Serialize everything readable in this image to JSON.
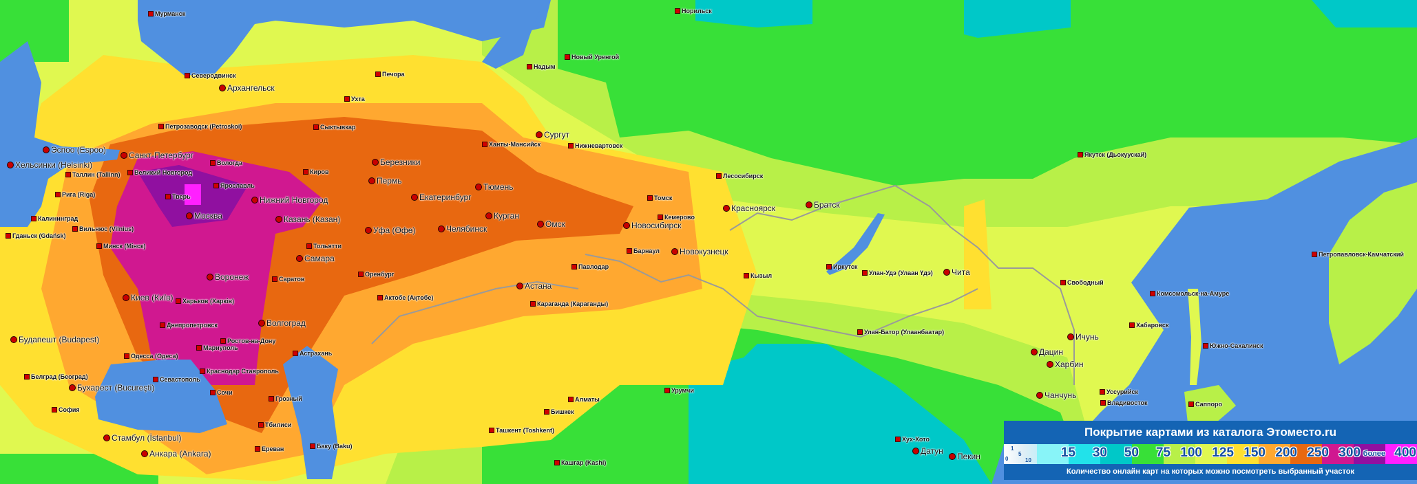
{
  "colors": {
    "sea": "#5090e0",
    "base": "#e0f850",
    "legend_bg": "#1464b4",
    "scale": [
      "#88f4f8",
      "#22e2ea",
      "#00c8c8",
      "#38e038",
      "#b8f048",
      "#e0f850",
      "#ffe030",
      "#ffa830",
      "#e86810",
      "#d01890",
      "#9010a0",
      "#ff20ff"
    ]
  },
  "legend": {
    "title": "Покрытие картами из каталога Этоместо.ru",
    "start_values": [
      "0",
      "1",
      "5",
      "10"
    ],
    "values": [
      "15",
      "30",
      "50",
      "75",
      "100",
      "125",
      "150",
      "200",
      "250",
      "300",
      "400"
    ],
    "more_label": "более",
    "subtitle": "Количество онлайн карт на которых можно посмотреть выбранный участок"
  },
  "cities": [
    {
      "name": "Мурманск",
      "type": "town"
    },
    {
      "name": "Северодвинск",
      "type": "town"
    },
    {
      "name": "Архангельск",
      "type": "city"
    },
    {
      "name": "Печора",
      "type": "town"
    },
    {
      "name": "Ухта",
      "type": "town"
    },
    {
      "name": "Сыктывкар",
      "type": "town"
    },
    {
      "name": "Петрозаводск (Petroskoi)",
      "type": "town"
    },
    {
      "name": "Санкт-Петербург",
      "type": "city"
    },
    {
      "name": "Хельсинки (Helsinki)",
      "type": "city"
    },
    {
      "name": "Эспоо (Espoo)",
      "type": "city"
    },
    {
      "name": "Таллин (Tallinn)",
      "type": "town"
    },
    {
      "name": "Великий Новгород",
      "type": "town"
    },
    {
      "name": "Вологда",
      "type": "town"
    },
    {
      "name": "Ярославль",
      "type": "town"
    },
    {
      "name": "Киров",
      "type": "town"
    },
    {
      "name": "Пермь",
      "type": "city"
    },
    {
      "name": "Березники",
      "type": "city"
    },
    {
      "name": "Екатеринбург",
      "type": "city"
    },
    {
      "name": "Тюмень",
      "type": "city"
    },
    {
      "name": "Нижний Новгород",
      "type": "city"
    },
    {
      "name": "Казань (Казан)",
      "type": "city"
    },
    {
      "name": "Москва",
      "type": "city"
    },
    {
      "name": "Тверь",
      "type": "town"
    },
    {
      "name": "Уфа (Өфө)",
      "type": "city"
    },
    {
      "name": "Челябинск",
      "type": "city"
    },
    {
      "name": "Курган",
      "type": "city"
    },
    {
      "name": "Омск",
      "type": "city"
    },
    {
      "name": "Новосибирск",
      "type": "city"
    },
    {
      "name": "Красноярск",
      "type": "city"
    },
    {
      "name": "Братск",
      "type": "city"
    },
    {
      "name": "Иркутск",
      "type": "town"
    },
    {
      "name": "Чита",
      "type": "city"
    },
    {
      "name": "Томск",
      "type": "town"
    },
    {
      "name": "Кемерово",
      "type": "town"
    },
    {
      "name": "Новокузнецк",
      "type": "city"
    },
    {
      "name": "Барнаул",
      "type": "town"
    },
    {
      "name": "Павлодар",
      "type": "town"
    },
    {
      "name": "Астана",
      "type": "city"
    },
    {
      "name": "Караганда (Караганды)",
      "type": "town"
    },
    {
      "name": "Самара",
      "type": "city"
    },
    {
      "name": "Тольятти",
      "type": "town"
    },
    {
      "name": "Саратов",
      "type": "town"
    },
    {
      "name": "Воронеж",
      "type": "city"
    },
    {
      "name": "Киев (Київ)",
      "type": "city"
    },
    {
      "name": "Минск (Мінск)",
      "type": "town"
    },
    {
      "name": "Волгоград",
      "type": "city"
    },
    {
      "name": "Ростов-на-Дону",
      "type": "town"
    },
    {
      "name": "Краснодар Ставрополь",
      "type": "town"
    },
    {
      "name": "Астрахань",
      "type": "town"
    },
    {
      "name": "Сочи",
      "type": "town"
    },
    {
      "name": "Грозный",
      "type": "town"
    },
    {
      "name": "Тбилиси",
      "type": "town"
    },
    {
      "name": "Баку (Baku)",
      "type": "town"
    },
    {
      "name": "Ереван",
      "type": "town"
    },
    {
      "name": "Одесса (Одеса)",
      "type": "town"
    },
    {
      "name": "Севастополь",
      "type": "town"
    },
    {
      "name": "Бухарест (Bucureşti)",
      "type": "city"
    },
    {
      "name": "Будапешт (Budapest)",
      "type": "city"
    },
    {
      "name": "Стамбул (İstanbul)",
      "type": "city"
    },
    {
      "name": "Анкара (Ankara)",
      "type": "city"
    },
    {
      "name": "София",
      "type": "town"
    },
    {
      "name": "Белград (Београд)",
      "type": "town"
    },
    {
      "name": "Оренбург",
      "type": "town"
    },
    {
      "name": "Актобе (Ақтөбе)",
      "type": "town"
    },
    {
      "name": "Сургут",
      "type": "city"
    },
    {
      "name": "Ханты-Мансийск",
      "type": "town"
    },
    {
      "name": "Нижневартовск",
      "type": "town"
    },
    {
      "name": "Новый Уренгой",
      "type": "town"
    },
    {
      "name": "Надым",
      "type": "town"
    },
    {
      "name": "Норильск",
      "type": "town"
    },
    {
      "name": "Якутск (Дьокуускай)",
      "type": "town"
    },
    {
      "name": "Лесосибирск",
      "type": "town"
    },
    {
      "name": "Улан-Удэ (Улаан Үдэ)",
      "type": "town"
    },
    {
      "name": "Улан-Батор (Улаанбаатар)",
      "type": "town"
    },
    {
      "name": "Хабаровск",
      "type": "town"
    },
    {
      "name": "Комсомольск-на-Амуре",
      "type": "town"
    },
    {
      "name": "Свободный",
      "type": "town"
    },
    {
      "name": "Харбин",
      "type": "city"
    },
    {
      "name": "Ичунь",
      "type": "city"
    },
    {
      "name": "Дацин",
      "type": "city"
    },
    {
      "name": "Чанчунь",
      "type": "city"
    },
    {
      "name": "Владивосток",
      "type": "town"
    },
    {
      "name": "Уссурийск",
      "type": "town"
    },
    {
      "name": "Южно-Сахалинск",
      "type": "town"
    },
    {
      "name": "Саппоро",
      "type": "town"
    },
    {
      "name": "Петропавловск-Камчатский",
      "type": "town"
    },
    {
      "name": "Пекин",
      "type": "city"
    },
    {
      "name": "Датун",
      "type": "city"
    },
    {
      "name": "Хух-Хото",
      "type": "town"
    },
    {
      "name": "Урумчи",
      "type": "town"
    },
    {
      "name": "Алматы",
      "type": "town"
    },
    {
      "name": "Бишкек",
      "type": "town"
    },
    {
      "name": "Ташкент (Toshkent)",
      "type": "town"
    },
    {
      "name": "Кашгар (Kashi)",
      "type": "town"
    },
    {
      "name": "Кызыл",
      "type": "town"
    },
    {
      "name": "Рига (Riga)",
      "type": "town"
    },
    {
      "name": "Вильнюс (Vilnius)",
      "type": "town"
    },
    {
      "name": "Калининград",
      "type": "town"
    },
    {
      "name": "Гданьск (Gdańsk)",
      "type": "town"
    },
    {
      "name": "Харьков (Харків)",
      "type": "town"
    },
    {
      "name": "Днепропетровск",
      "type": "town"
    },
    {
      "name": "Мариуполь",
      "type": "town"
    }
  ]
}
